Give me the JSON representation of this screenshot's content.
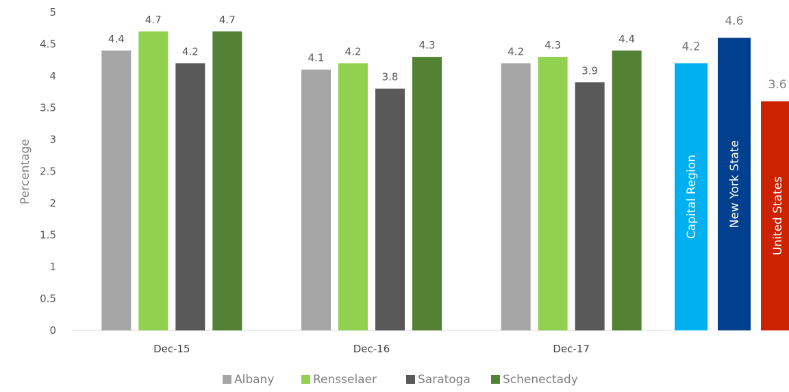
{
  "chart_data": [
    {
      "type": "bar",
      "categories": [
        "Dec-15",
        "Dec-16",
        "Dec-17"
      ],
      "series": [
        {
          "name": "Albany",
          "values": [
            4.4,
            4.1,
            4.2
          ],
          "color": "#a6a6a6"
        },
        {
          "name": "Rensselaer",
          "values": [
            4.7,
            4.2,
            4.3
          ],
          "color": "#92d050"
        },
        {
          "name": "Saratoga",
          "values": [
            4.2,
            3.8,
            3.9
          ],
          "color": "#595959"
        },
        {
          "name": "Schenectady",
          "values": [
            4.7,
            4.3,
            4.4
          ],
          "color": "#548235"
        }
      ],
      "ylabel": "Percentage",
      "ylim": [
        0,
        5
      ],
      "yticks": [
        "0",
        "0.5",
        "1",
        "1.5",
        "2",
        "2.5",
        "3",
        "3.5",
        "4",
        "4.5",
        "5"
      ],
      "grid": false,
      "legend": "bottom"
    },
    {
      "type": "bar",
      "categories": [
        "Capital Region",
        "New York State",
        "United States"
      ],
      "values": [
        4.2,
        4.6,
        3.6
      ],
      "labels": [
        "4.2",
        "4.6",
        "3.6"
      ],
      "colors": [
        "#00b0f0",
        "#00408f",
        "#cc2200"
      ],
      "ylim": [
        0,
        5
      ]
    }
  ]
}
